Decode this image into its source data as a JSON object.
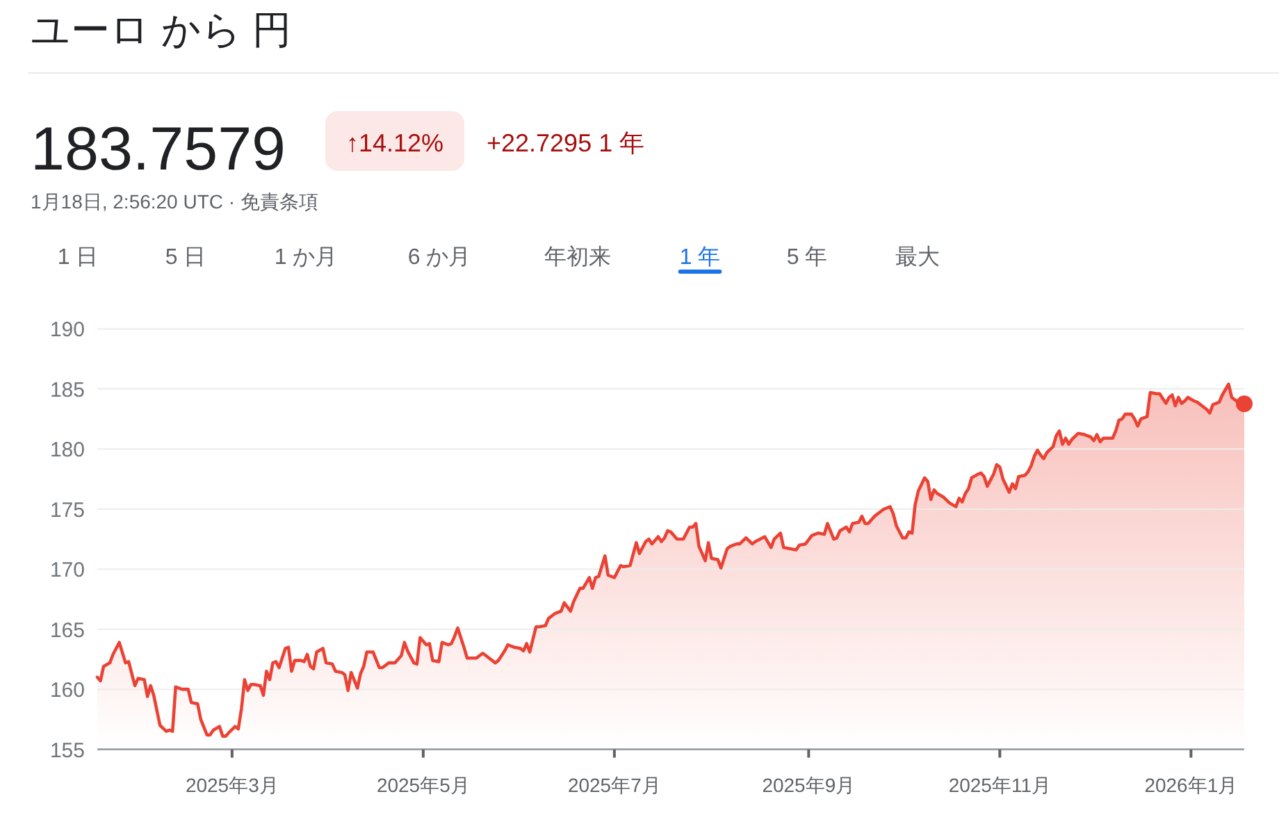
{
  "chart_data": {
    "type": "area",
    "title": "ユーロ から 円",
    "annotations": [
      "183.7579",
      "↑14.12%",
      "+22.7295 1 年",
      "1月18日, 2:56:20 UTC · 免責条項",
      "1 日",
      "5 日",
      "1 か月",
      "6 か月",
      "年初来",
      "1 年",
      "5 年",
      "最大"
    ],
    "x": [
      "2025-01-17",
      "2025-01-18",
      "2025-01-19",
      "2025-01-21",
      "2025-01-22",
      "2025-01-24",
      "2025-01-26",
      "2025-01-27",
      "2025-01-29",
      "2025-01-30",
      "2025-02-01",
      "2025-02-02",
      "2025-02-03",
      "2025-02-04",
      "2025-02-06",
      "2025-02-08",
      "2025-02-09",
      "2025-02-10",
      "2025-02-11",
      "2025-02-13",
      "2025-02-15",
      "2025-02-16",
      "2025-02-18",
      "2025-02-19",
      "2025-02-21",
      "2025-02-22",
      "2025-02-23",
      "2025-02-25",
      "2025-02-26",
      "2025-02-27",
      "2025-02-28",
      "2025-03-02",
      "2025-03-03",
      "2025-03-04",
      "2025-03-05",
      "2025-03-06",
      "2025-03-07",
      "2025-03-08",
      "2025-03-10",
      "2025-03-11",
      "2025-03-12",
      "2025-03-13",
      "2025-03-14",
      "2025-03-15",
      "2025-03-16",
      "2025-03-18",
      "2025-03-19",
      "2025-03-20",
      "2025-03-21",
      "2025-03-23",
      "2025-03-24",
      "2025-03-25",
      "2025-03-26",
      "2025-03-27",
      "2025-03-28",
      "2025-03-30",
      "2025-03-31",
      "2025-04-02",
      "2025-04-03",
      "2025-04-05",
      "2025-04-06",
      "2025-04-07",
      "2025-04-08",
      "2025-04-10",
      "2025-04-11",
      "2025-04-12",
      "2025-04-13",
      "2025-04-15",
      "2025-04-17",
      "2025-04-18",
      "2025-04-20",
      "2025-04-22",
      "2025-04-24",
      "2025-04-25",
      "2025-04-26",
      "2025-04-28",
      "2025-04-29",
      "2025-04-30",
      "2025-05-02",
      "2025-05-03",
      "2025-05-04",
      "2025-05-06",
      "2025-05-07",
      "2025-05-09",
      "2025-05-10",
      "2025-05-11",
      "2025-05-12",
      "2025-05-14",
      "2025-05-15",
      "2025-05-18",
      "2025-05-20",
      "2025-05-24",
      "2025-05-25",
      "2025-05-27",
      "2025-05-28",
      "2025-05-30",
      "2025-06-01",
      "2025-06-02",
      "2025-06-03",
      "2025-06-04",
      "2025-06-06",
      "2025-06-07",
      "2025-06-09",
      "2025-06-10",
      "2025-06-12",
      "2025-06-14",
      "2025-06-15",
      "2025-06-17",
      "2025-06-18",
      "2025-06-20",
      "2025-06-21",
      "2025-06-23",
      "2025-06-24",
      "2025-06-25",
      "2025-06-26",
      "2025-06-28",
      "2025-06-29",
      "2025-07-01",
      "2025-07-03",
      "2025-07-04",
      "2025-07-06",
      "2025-07-08",
      "2025-07-09",
      "2025-07-11",
      "2025-07-12",
      "2025-07-13",
      "2025-07-15",
      "2025-07-16",
      "2025-07-17",
      "2025-07-18",
      "2025-07-19",
      "2025-07-21",
      "2025-07-23",
      "2025-07-25",
      "2025-07-26",
      "2025-07-27",
      "2025-07-28",
      "2025-07-30",
      "2025-07-31",
      "2025-08-01",
      "2025-08-03",
      "2025-08-04",
      "2025-08-06",
      "2025-08-07",
      "2025-08-09",
      "2025-08-10",
      "2025-08-12",
      "2025-08-14",
      "2025-08-15",
      "2025-08-18",
      "2025-08-20",
      "2025-08-21",
      "2025-08-23",
      "2025-08-24",
      "2025-08-26",
      "2025-08-28",
      "2025-08-29",
      "2025-08-31",
      "2025-09-02",
      "2025-09-04",
      "2025-09-06",
      "2025-09-07",
      "2025-09-09",
      "2025-09-10",
      "2025-09-11",
      "2025-09-13",
      "2025-09-14",
      "2025-09-15",
      "2025-09-17",
      "2025-09-18",
      "2025-09-19",
      "2025-09-20",
      "2025-09-22",
      "2025-09-24",
      "2025-09-25",
      "2025-09-27",
      "2025-09-28",
      "2025-09-29",
      "2025-10-01",
      "2025-10-02",
      "2025-10-03",
      "2025-10-04",
      "2025-10-05",
      "2025-10-06",
      "2025-10-08",
      "2025-10-09",
      "2025-10-10",
      "2025-10-11",
      "2025-10-12",
      "2025-10-14",
      "2025-10-16",
      "2025-10-18",
      "2025-10-19",
      "2025-10-20",
      "2025-10-21",
      "2025-10-22",
      "2025-10-23",
      "2025-10-25",
      "2025-10-26",
      "2025-10-27",
      "2025-10-28",
      "2025-10-30",
      "2025-10-31",
      "2025-11-01",
      "2025-11-02",
      "2025-11-04",
      "2025-11-05",
      "2025-11-06",
      "2025-11-07",
      "2025-11-09",
      "2025-11-10",
      "2025-11-11",
      "2025-11-12",
      "2025-11-13",
      "2025-11-14",
      "2025-11-15",
      "2025-11-16",
      "2025-11-18",
      "2025-11-19",
      "2025-11-20",
      "2025-11-21",
      "2025-11-22",
      "2025-11-23",
      "2025-11-24",
      "2025-11-26",
      "2025-11-28",
      "2025-11-30",
      "2025-12-01",
      "2025-12-02",
      "2025-12-03",
      "2025-12-04",
      "2025-12-07",
      "2025-12-08",
      "2025-12-09",
      "2025-12-10",
      "2025-12-11",
      "2025-12-13",
      "2025-12-14",
      "2025-12-15",
      "2025-12-16",
      "2025-12-18",
      "2025-12-19",
      "2025-12-21",
      "2025-12-22",
      "2025-12-24",
      "2025-12-25",
      "2025-12-26",
      "2025-12-27",
      "2025-12-28",
      "2025-12-29",
      "2025-12-30",
      "2025-12-31",
      "2026-01-02",
      "2026-01-03",
      "2026-01-06",
      "2026-01-07",
      "2026-01-08",
      "2026-01-10",
      "2026-01-11",
      "2026-01-13",
      "2026-01-14",
      "2026-01-16",
      "2026-01-18"
    ],
    "series": [
      {
        "color": "#ea4335",
        "values": [
          161.0,
          160.7,
          161.9,
          162.2,
          162.9,
          163.9,
          162.2,
          162.3,
          160.3,
          160.9,
          160.8,
          159.4,
          160.3,
          159.5,
          157.0,
          156.5,
          156.6,
          156.5,
          160.2,
          160.0,
          160.0,
          158.9,
          158.8,
          157.5,
          156.2,
          156.2,
          156.6,
          156.9,
          156.1,
          156.1,
          156.4,
          156.9,
          156.7,
          158.4,
          160.8,
          159.9,
          160.4,
          160.4,
          160.3,
          159.5,
          161.5,
          160.8,
          162.2,
          162.3,
          161.8,
          163.4,
          163.5,
          161.5,
          162.4,
          162.4,
          162.3,
          162.9,
          161.9,
          161.7,
          163.1,
          163.4,
          162.2,
          162.1,
          161.5,
          161.4,
          161.2,
          159.9,
          161.4,
          160.1,
          161.3,
          161.9,
          163.1,
          163.1,
          161.8,
          161.8,
          162.2,
          162.2,
          162.8,
          163.9,
          163.2,
          162.2,
          162.1,
          164.3,
          163.7,
          163.8,
          162.4,
          162.3,
          163.9,
          163.7,
          163.8,
          164.4,
          165.1,
          163.5,
          162.6,
          162.6,
          163.0,
          162.2,
          162.4,
          163.2,
          163.7,
          163.5,
          163.4,
          163.2,
          163.8,
          163.1,
          165.2,
          165.2,
          165.3,
          165.9,
          166.3,
          166.5,
          167.2,
          166.5,
          167.3,
          168.4,
          168.4,
          169.3,
          168.4,
          169.3,
          169.4,
          171.1,
          169.5,
          169.3,
          170.3,
          170.2,
          170.3,
          172.2,
          171.3,
          172.3,
          172.5,
          172.1,
          172.7,
          172.3,
          172.6,
          173.2,
          173.1,
          172.5,
          172.5,
          173.5,
          173.5,
          173.8,
          171.9,
          170.7,
          172.2,
          170.9,
          170.8,
          170.1,
          171.7,
          171.9,
          172.1,
          172.1,
          172.6,
          172.1,
          172.3,
          172.7,
          171.8,
          172.5,
          173.0,
          171.8,
          171.7,
          171.6,
          172.0,
          172.1,
          172.8,
          173.0,
          172.9,
          173.8,
          172.5,
          172.6,
          173.2,
          173.5,
          173.1,
          173.8,
          173.9,
          174.4,
          173.8,
          173.8,
          174.4,
          174.8,
          175.0,
          175.2,
          174.6,
          173.6,
          172.6,
          172.6,
          173.1,
          173.0,
          175.4,
          176.5,
          177.6,
          177.3,
          175.8,
          176.6,
          176.3,
          176.0,
          175.5,
          175.2,
          175.9,
          175.6,
          176.3,
          176.7,
          177.6,
          177.9,
          178.0,
          177.7,
          176.9,
          177.9,
          178.7,
          178.5,
          177.5,
          176.4,
          177.1,
          176.7,
          177.7,
          177.8,
          178.1,
          178.6,
          179.4,
          179.9,
          179.5,
          179.2,
          179.7,
          180.2,
          181.1,
          181.5,
          180.4,
          180.9,
          180.4,
          180.8,
          181.3,
          181.2,
          181.0,
          180.7,
          181.2,
          180.6,
          180.9,
          180.9,
          181.5,
          182.4,
          182.5,
          182.9,
          182.9,
          182.5,
          181.9,
          182.5,
          182.7,
          184.7,
          184.6,
          184.6,
          183.8,
          184.3,
          184.5,
          183.6,
          184.3,
          183.8,
          184.0,
          184.3,
          184.0,
          183.9,
          183.3,
          183.0,
          183.7,
          183.9,
          184.5,
          185.4,
          184.3,
          183.9,
          183.7579
        ]
      },
      {
        "type": "scatter",
        "color": "#ea4335",
        "x": [
          "2026-01-18"
        ],
        "values": [
          183.7579
        ]
      }
    ],
    "xlim": [
      "2025-01-17",
      "2026-01-18"
    ],
    "xticks": [
      {
        "value": "2025-03-01",
        "label": "2025年3月"
      },
      {
        "value": "2025-05-01",
        "label": "2025年5月"
      },
      {
        "value": "2025-07-01",
        "label": "2025年7月"
      },
      {
        "value": "2025-09-01",
        "label": "2025年9月"
      },
      {
        "value": "2025-11-01",
        "label": "2025年11月"
      },
      {
        "value": "2026-01-01",
        "label": "2026年1月"
      }
    ],
    "ylim": [
      155,
      190
    ],
    "yticks": [
      155,
      160,
      165,
      170,
      175,
      180,
      185,
      190
    ],
    "grid": "y"
  }
}
